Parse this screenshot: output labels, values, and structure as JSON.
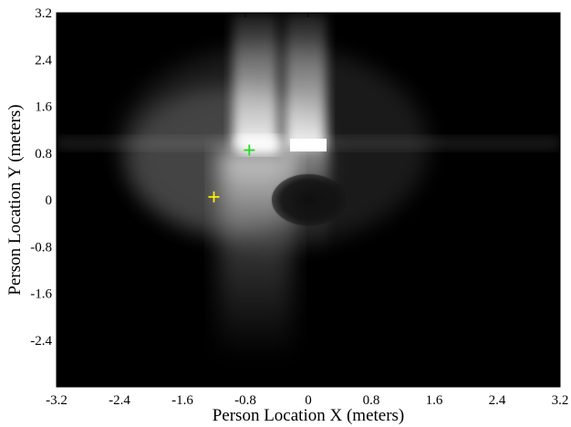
{
  "chart_data": {
    "type": "heatmap",
    "title": "",
    "xlabel": "Person Location X (meters)",
    "ylabel": "Person Location Y (meters)",
    "xlim": [
      -3.2,
      3.2
    ],
    "ylim": [
      -3.2,
      3.2
    ],
    "xticks": [
      "-3.2",
      "-2.4",
      "-1.6",
      "-0.8",
      "0",
      "0.8",
      "1.6",
      "2.4",
      "3.2"
    ],
    "yticks": [
      "-2.4",
      "-1.6",
      "-0.8",
      "0",
      "0.8",
      "1.6",
      "2.4",
      "3.2"
    ],
    "colormap": "grayscale",
    "grid": false,
    "markers": [
      {
        "x": -0.75,
        "y": 0.85,
        "symbol": "+",
        "color": "#22dd22"
      },
      {
        "x": -1.2,
        "y": 0.05,
        "symbol": "+",
        "color": "#ffee00"
      }
    ]
  }
}
